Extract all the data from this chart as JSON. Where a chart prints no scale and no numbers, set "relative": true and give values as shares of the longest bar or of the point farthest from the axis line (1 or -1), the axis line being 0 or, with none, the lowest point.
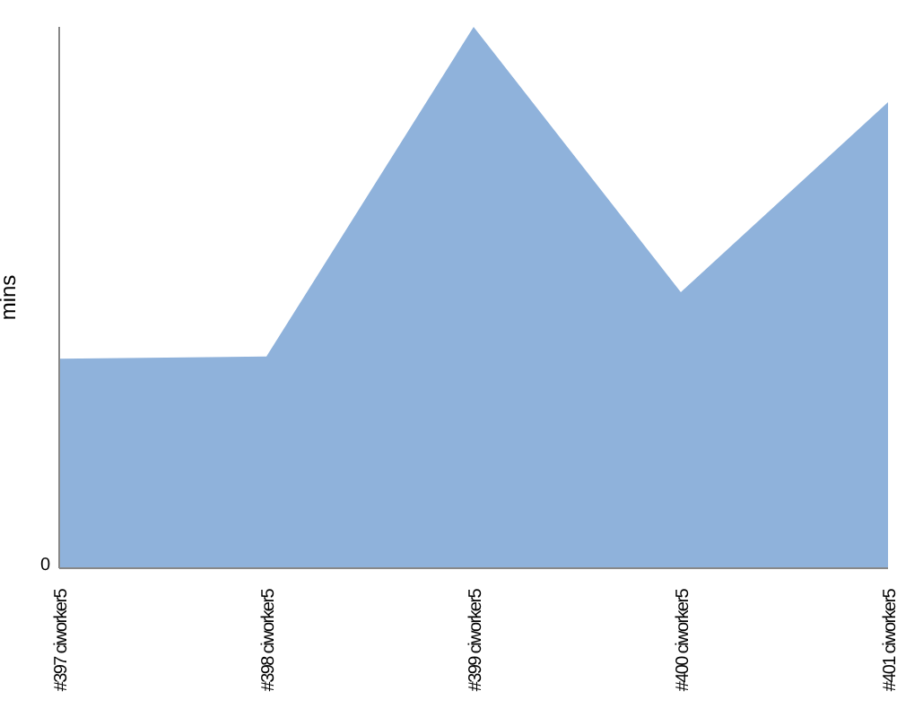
{
  "chart_data": {
    "type": "area",
    "relative": true,
    "ylabel": "mins",
    "annotations": [
      "0"
    ],
    "categories": [
      "#397 ciworker5",
      "#398 ciworker5",
      "#399 ciworker5",
      "#400 ciworker5",
      "#401 ciworker5"
    ],
    "series": [
      {
        "color": "#8fb2db",
        "values": [
          0.387,
          0.391,
          1,
          0.51,
          0.861
        ]
      }
    ],
    "legend": false
  }
}
